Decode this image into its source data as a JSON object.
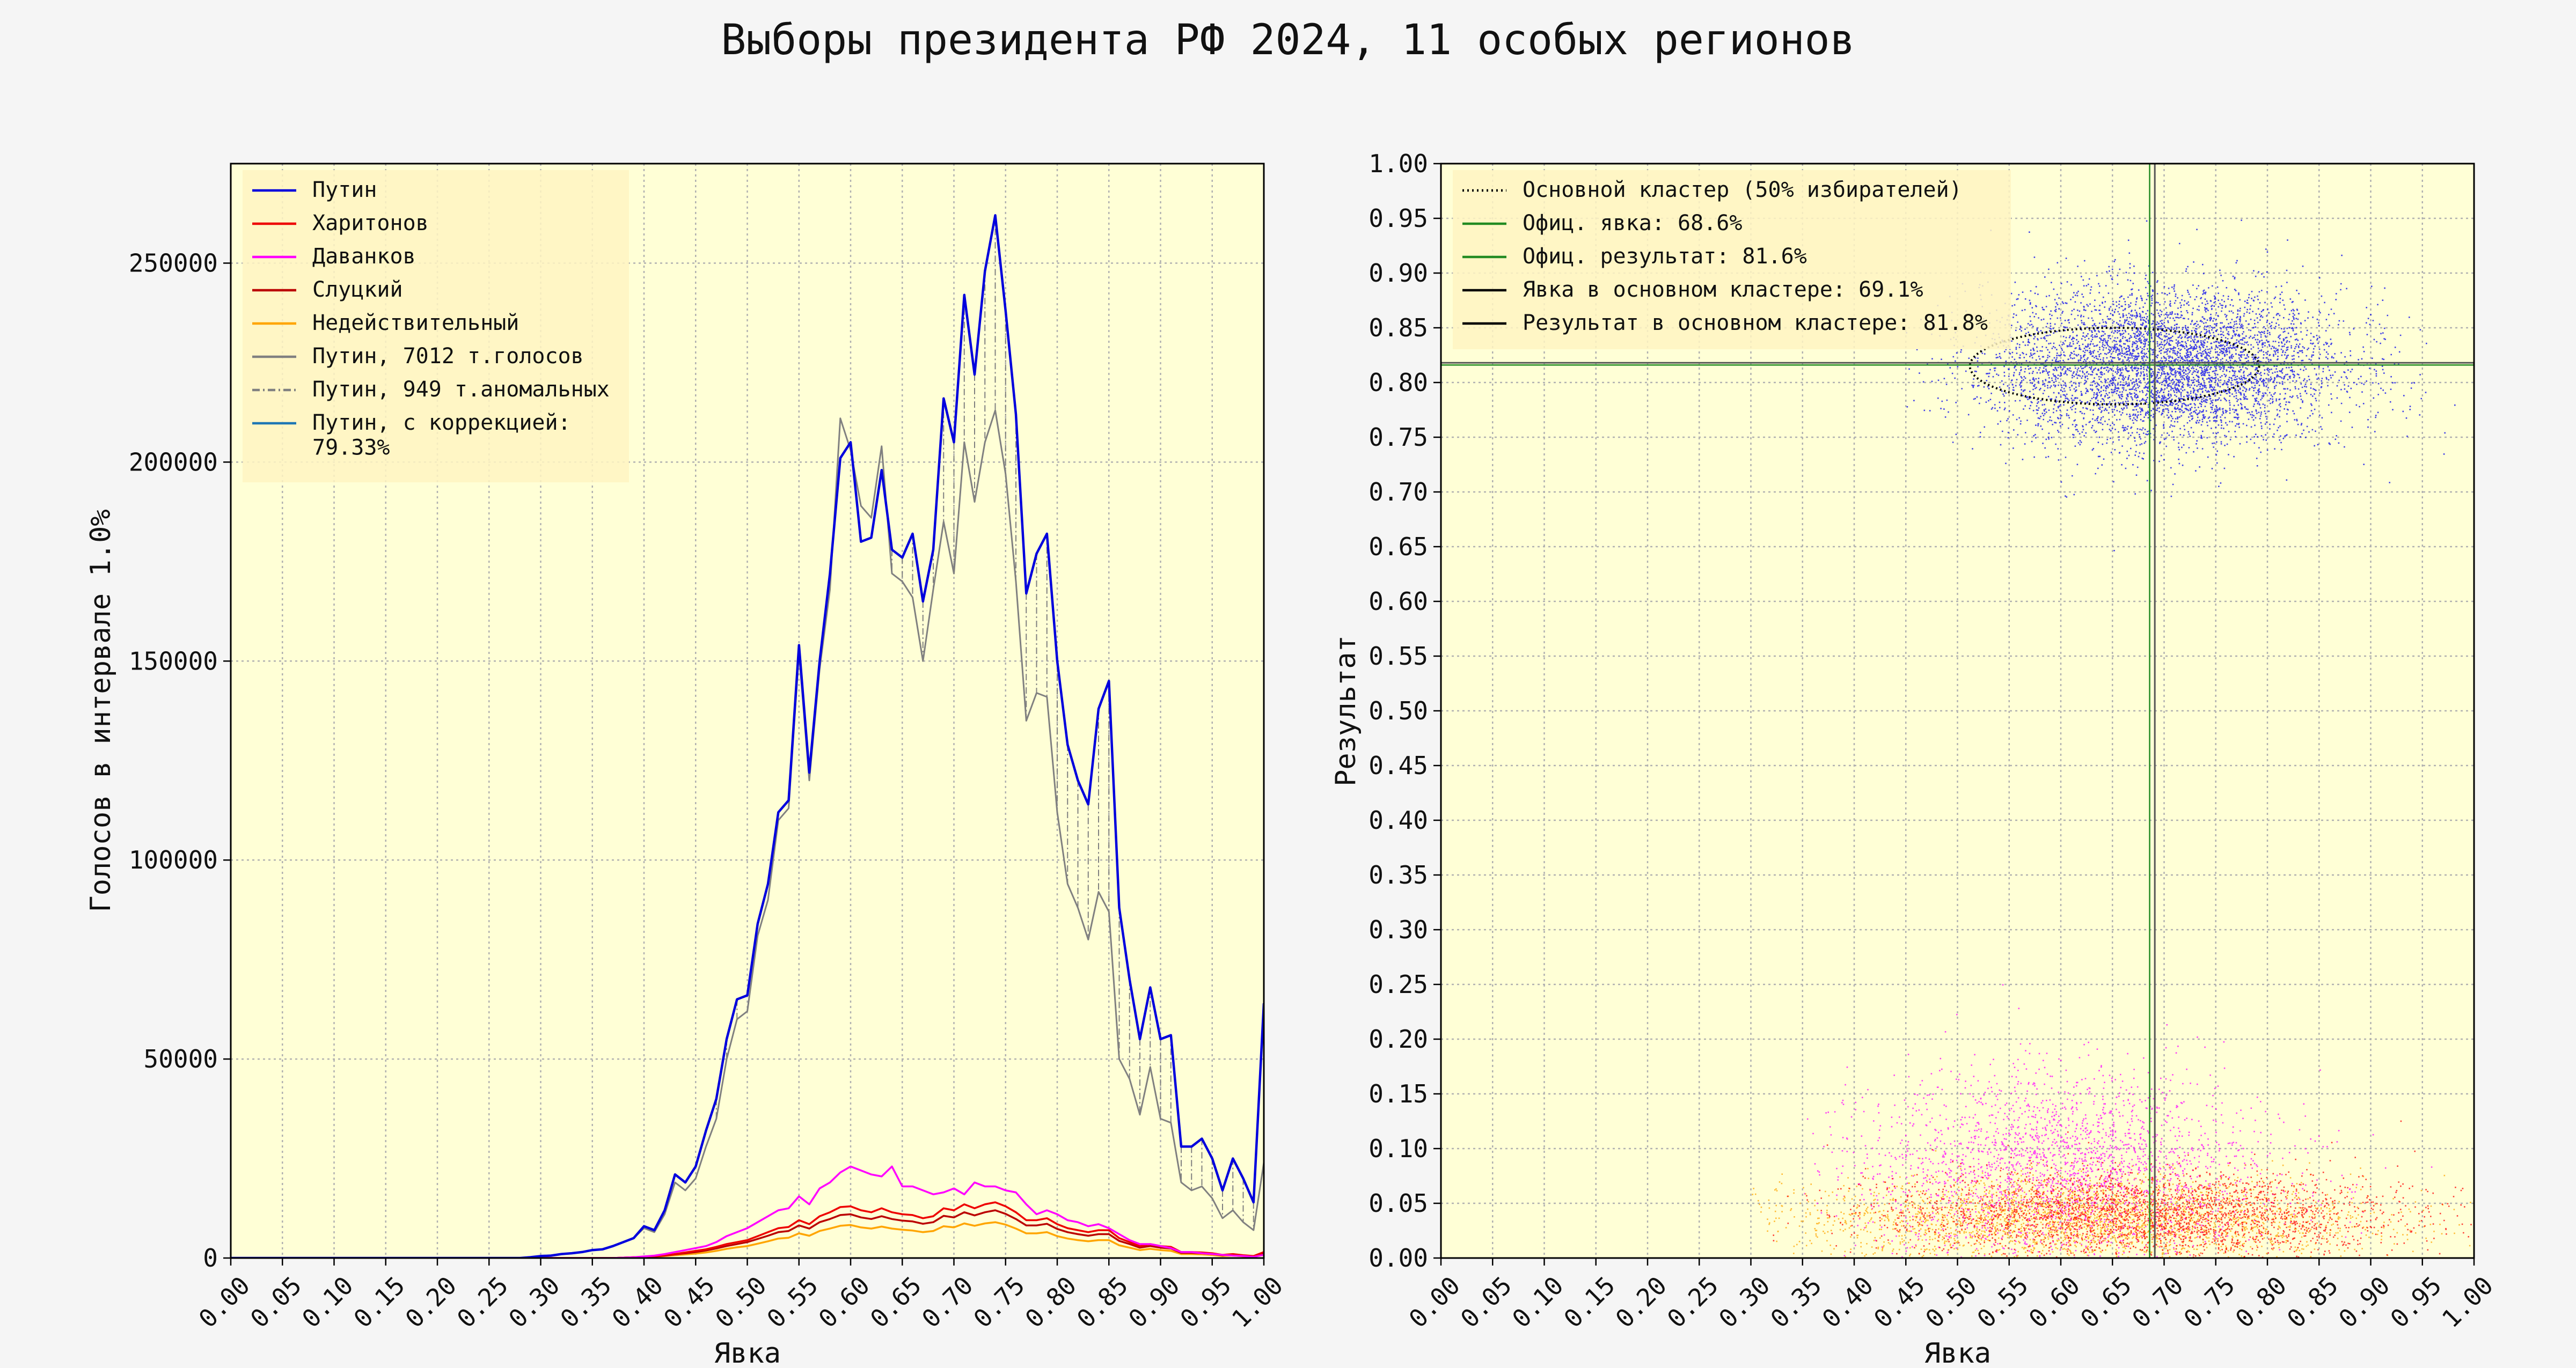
{
  "title": "Выборы президента РФ 2024, 11 особых регионов",
  "colors": {
    "page_bg": "#f5f5f5",
    "axes_bg": "#ffffd6",
    "legend_bg": "#fff5c2",
    "grid": "#b0b0b0",
    "putin": "#0000dd",
    "kharitonov": "#ee0000",
    "davankov": "#ff00ff",
    "slutsky": "#bb0000",
    "invalid": "#ffa500",
    "putin_gray": "#808080",
    "corrected": "#1f77b4"
  },
  "chart_data": [
    {
      "type": "line",
      "xlabel": "Явка",
      "ylabel": "Голосов в интервале 1.0%",
      "xlim": [
        0,
        1
      ],
      "ylim": [
        0,
        275000
      ],
      "xticks": [
        "0.00",
        "0.05",
        "0.10",
        "0.15",
        "0.20",
        "0.25",
        "0.30",
        "0.35",
        "0.40",
        "0.45",
        "0.50",
        "0.55",
        "0.60",
        "0.65",
        "0.70",
        "0.75",
        "0.80",
        "0.85",
        "0.90",
        "0.95",
        "1.00"
      ],
      "yticks": [
        "0",
        "50000",
        "100000",
        "150000",
        "200000",
        "250000"
      ],
      "grid": true,
      "legend_position": "top-left",
      "legend": [
        {
          "label": "Путин",
          "color": "#0000dd",
          "style": "solid"
        },
        {
          "label": "Харитонов",
          "color": "#ee0000",
          "style": "solid"
        },
        {
          "label": "Даванков",
          "color": "#ff00ff",
          "style": "solid"
        },
        {
          "label": "Слуцкий",
          "color": "#bb0000",
          "style": "solid"
        },
        {
          "label": "Недействительный",
          "color": "#ffa500",
          "style": "solid"
        },
        {
          "label": "Путин, 7012 т.голосов",
          "color": "#808080",
          "style": "solid"
        },
        {
          "label": "Путин, 949 т.аномальных",
          "color": "#808080",
          "style": "dashdot"
        },
        {
          "label": "Путин, с коррекцией:",
          "label2": " 79.33%",
          "color": "#1f77b4",
          "style": "solid"
        }
      ],
      "x": [
        0.0,
        0.28,
        0.29,
        0.3,
        0.31,
        0.32,
        0.33,
        0.34,
        0.35,
        0.36,
        0.37,
        0.38,
        0.39,
        0.4,
        0.41,
        0.42,
        0.43,
        0.44,
        0.45,
        0.46,
        0.47,
        0.48,
        0.49,
        0.5,
        0.51,
        0.52,
        0.53,
        0.54,
        0.55,
        0.56,
        0.57,
        0.58,
        0.59,
        0.6,
        0.61,
        0.62,
        0.63,
        0.64,
        0.65,
        0.66,
        0.67,
        0.68,
        0.69,
        0.7,
        0.71,
        0.72,
        0.73,
        0.74,
        0.75,
        0.76,
        0.77,
        0.78,
        0.79,
        0.8,
        0.81,
        0.82,
        0.83,
        0.84,
        0.85,
        0.86,
        0.87,
        0.88,
        0.89,
        0.9,
        0.91,
        0.92,
        0.93,
        0.94,
        0.95,
        0.96,
        0.97,
        0.98,
        0.99,
        1.0
      ],
      "series": [
        {
          "name": "Путин",
          "color": "#0000dd",
          "width": 4.5,
          "values": [
            0,
            0,
            200,
            500,
            600,
            1000,
            1200,
            1500,
            2000,
            2200,
            3000,
            4000,
            5000,
            8000,
            7000,
            12000,
            21000,
            19000,
            23000,
            32000,
            40000,
            55000,
            65000,
            66000,
            84000,
            94000,
            112000,
            115000,
            154000,
            122000,
            150000,
            172000,
            201000,
            205000,
            180000,
            181000,
            198000,
            178000,
            176000,
            182000,
            165000,
            178000,
            216000,
            205000,
            242000,
            222000,
            248000,
            262000,
            238000,
            212000,
            167000,
            177000,
            182000,
            150000,
            129000,
            120000,
            114000,
            138000,
            145000,
            88000,
            70000,
            55000,
            68000,
            55000,
            56000,
            28000,
            28000,
            30000,
            25000,
            17000,
            25000,
            20000,
            14000,
            64000
          ]
        },
        {
          "name": "Путин, 7012 т.голосов",
          "color": "#808080",
          "width": 3,
          "values": [
            0,
            0,
            200,
            500,
            600,
            1000,
            1200,
            1500,
            2000,
            2200,
            3000,
            4000,
            5000,
            7500,
            6500,
            11000,
            19000,
            17000,
            20000,
            28000,
            35000,
            50000,
            60000,
            62000,
            81000,
            90000,
            110000,
            113000,
            152000,
            120000,
            148000,
            168000,
            211000,
            203000,
            189000,
            186000,
            204000,
            172000,
            170000,
            166000,
            150000,
            168000,
            185000,
            172000,
            205000,
            190000,
            205000,
            213000,
            197000,
            170000,
            135000,
            142000,
            141000,
            112000,
            94000,
            88000,
            80000,
            92000,
            87000,
            50000,
            45000,
            36000,
            48000,
            35000,
            34000,
            19000,
            17000,
            18000,
            15000,
            10000,
            12000,
            9000,
            7000,
            24000
          ]
        },
        {
          "name": "Даванков",
          "color": "#ff00ff",
          "width": 3.5,
          "values": [
            0,
            0,
            0,
            0,
            0,
            0,
            0,
            0,
            0,
            0,
            0,
            100,
            200,
            400,
            600,
            1000,
            1500,
            2000,
            2500,
            3000,
            4000,
            5500,
            6500,
            7500,
            9000,
            10500,
            12000,
            12500,
            15500,
            13500,
            17500,
            19000,
            21500,
            23000,
            22000,
            21000,
            20500,
            23000,
            18000,
            18000,
            17000,
            16000,
            16500,
            17500,
            16000,
            19000,
            18000,
            18000,
            17000,
            16500,
            13500,
            11000,
            12000,
            11000,
            9500,
            9000,
            8000,
            8500,
            7500,
            6000,
            4500,
            3500,
            3500,
            3000,
            2500,
            1500,
            1500,
            1200,
            1000,
            800,
            600,
            500,
            300,
            800
          ]
        },
        {
          "name": "Харитонов",
          "color": "#ee0000",
          "width": 3.5,
          "values": [
            0,
            0,
            0,
            0,
            0,
            0,
            0,
            0,
            0,
            0,
            0,
            100,
            200,
            300,
            400,
            700,
            1000,
            1400,
            1800,
            2200,
            2800,
            3500,
            4000,
            4500,
            5500,
            6500,
            7500,
            7800,
            9500,
            8500,
            10500,
            11500,
            12800,
            13000,
            12000,
            11500,
            12500,
            11500,
            11000,
            10800,
            10000,
            10500,
            12500,
            12000,
            13500,
            12500,
            13500,
            14000,
            13000,
            11500,
            9500,
            9500,
            10000,
            8500,
            7500,
            7000,
            6500,
            7000,
            7000,
            5000,
            4000,
            3000,
            3500,
            3000,
            2800,
            1500,
            1500,
            1400,
            1200,
            800,
            1000,
            700,
            500,
            1500
          ]
        },
        {
          "name": "Слуцкий",
          "color": "#bb0000",
          "width": 3.5,
          "values": [
            0,
            0,
            0,
            0,
            0,
            0,
            0,
            0,
            0,
            0,
            0,
            100,
            200,
            300,
            400,
            600,
            900,
            1200,
            1500,
            1900,
            2400,
            3000,
            3500,
            4000,
            4800,
            5600,
            6500,
            6800,
            8200,
            7400,
            9000,
            9800,
            10800,
            11000,
            10200,
            9800,
            10500,
            9800,
            9400,
            9200,
            8600,
            9000,
            10600,
            10200,
            11500,
            10700,
            11500,
            12000,
            11100,
            9800,
            8200,
            8200,
            8600,
            7300,
            6500,
            6000,
            5600,
            6000,
            6000,
            4300,
            3500,
            2600,
            3000,
            2600,
            2400,
            1300,
            1300,
            1200,
            1000,
            700,
            850,
            600,
            450,
            1300
          ]
        },
        {
          "name": "Недействительный",
          "color": "#ffa500",
          "width": 3.5,
          "values": [
            0,
            0,
            0,
            0,
            0,
            0,
            0,
            0,
            0,
            0,
            0,
            100,
            150,
            250,
            350,
            500,
            700,
            900,
            1100,
            1400,
            1800,
            2300,
            2700,
            3000,
            3600,
            4200,
            4900,
            5100,
            6200,
            5600,
            6800,
            7400,
            8100,
            8300,
            7700,
            7400,
            7900,
            7400,
            7100,
            6900,
            6500,
            6800,
            8000,
            7700,
            8700,
            8100,
            8700,
            9000,
            8400,
            7400,
            6200,
            6200,
            6500,
            5500,
            4900,
            4500,
            4200,
            4500,
            4500,
            3200,
            2600,
            2000,
            2300,
            2000,
            1800,
            1000,
            1000,
            900,
            750,
            500,
            650,
            450,
            350,
            1000
          ]
        }
      ]
    },
    {
      "type": "scatter",
      "xlabel": "Явка",
      "ylabel": "Результат",
      "xlim": [
        0,
        1
      ],
      "ylim": [
        0,
        1
      ],
      "xticks": [
        "0.00",
        "0.05",
        "0.10",
        "0.15",
        "0.20",
        "0.25",
        "0.30",
        "0.35",
        "0.40",
        "0.45",
        "0.50",
        "0.55",
        "0.60",
        "0.65",
        "0.70",
        "0.75",
        "0.80",
        "0.85",
        "0.90",
        "0.95",
        "1.00"
      ],
      "yticks": [
        "0.00",
        "0.05",
        "0.10",
        "0.15",
        "0.20",
        "0.25",
        "0.30",
        "0.35",
        "0.40",
        "0.45",
        "0.50",
        "0.55",
        "0.60",
        "0.65",
        "0.70",
        "0.75",
        "0.80",
        "0.85",
        "0.90",
        "0.95",
        "1.00"
      ],
      "grid": true,
      "legend_position": "top-left",
      "legend": [
        {
          "label": "Основной кластер (50% избирателей)",
          "color": "#000000",
          "style": "dotted"
        },
        {
          "label": "Офиц. явка: 68.6%",
          "color": "#228b22",
          "style": "solid"
        },
        {
          "label": "Офиц. результат: 81.6%",
          "color": "#228b22",
          "style": "solid"
        },
        {
          "label": "Явка в основном кластере: 69.1%",
          "color": "#000000",
          "style": "solid"
        },
        {
          "label": "Результат в основном кластере: 81.8%",
          "color": "#000000",
          "style": "solid"
        }
      ],
      "official_turnout": 0.686,
      "official_result": 0.816,
      "cluster_turnout": 0.691,
      "cluster_result": 0.818,
      "clusters": [
        {
          "name": "Путин",
          "color": "#0000ee",
          "center": [
            0.7,
            0.815
          ],
          "spread": [
            0.085,
            0.035
          ],
          "range_x": [
            0.45,
            1.0
          ],
          "range_y": [
            0.6,
            1.0
          ],
          "count": 6000
        },
        {
          "name": "Даванков",
          "color": "#ff00ff",
          "center": [
            0.6,
            0.08
          ],
          "spread": [
            0.1,
            0.045
          ],
          "range_x": [
            0.35,
            1.0
          ],
          "range_y": [
            0.0,
            0.27
          ],
          "count": 3000
        },
        {
          "name": "Недействительный",
          "color": "#ffa500",
          "center": [
            0.62,
            0.035
          ],
          "spread": [
            0.14,
            0.02
          ],
          "range_x": [
            0.3,
            1.0
          ],
          "range_y": [
            0.0,
            0.1
          ],
          "count": 2500
        },
        {
          "name": "Харитонов",
          "color": "#ff0000",
          "center": [
            0.68,
            0.04
          ],
          "spread": [
            0.13,
            0.02
          ],
          "range_x": [
            0.32,
            1.0
          ],
          "range_y": [
            0.0,
            0.14
          ],
          "count": 7000
        }
      ],
      "cluster_ellipse": {
        "center": [
          0.652,
          0.815
        ],
        "radii": [
          0.14,
          0.035
        ]
      }
    }
  ]
}
